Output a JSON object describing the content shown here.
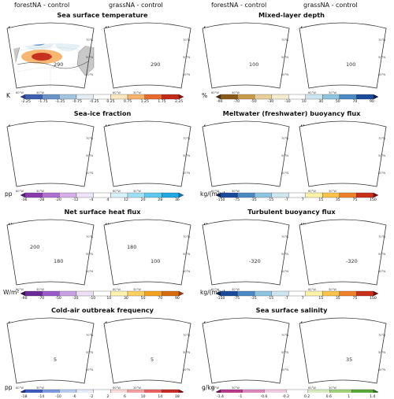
{
  "column_headers": [
    "forestNA - control",
    "grassNA - control",
    "forestNA - control",
    "grassNA - control"
  ],
  "rows": [
    {
      "left": {
        "title": "Sea surface temperature",
        "panels": [
          {
            "label": "(a)",
            "contours": [
              "290"
            ]
          },
          {
            "label": "(b)",
            "contours": [
              "290"
            ]
          }
        ],
        "unit": "K",
        "ticks": [
          "-2.25",
          "-1.75",
          "-1.25",
          "-0.75",
          "-0.25",
          "0.25",
          "0.75",
          "1.25",
          "1.75",
          "2.25"
        ],
        "colors": [
          "#2c3a8f",
          "#3d60b0",
          "#6a94c8",
          "#a3c5e0",
          "#e4eef6",
          "#ffffff",
          "#fde7c0",
          "#f7b36a",
          "#e8692d",
          "#c42a1a",
          "#8c1010"
        ]
      },
      "right": {
        "title": "Mixed-layer depth",
        "panels": [
          {
            "label": "(c)",
            "contours": [
              "100"
            ]
          },
          {
            "label": "(d)",
            "contours": [
              "100"
            ]
          }
        ],
        "unit": "%",
        "ticks": [
          "-90",
          "-70",
          "-50",
          "-30",
          "-10",
          "10",
          "30",
          "50",
          "70",
          "90"
        ],
        "colors": [
          "#4a2a0a",
          "#8a5a1a",
          "#c89a4a",
          "#e8d09a",
          "#f6ecd0",
          "#ffffff",
          "#cfe6f0",
          "#8ec4e0",
          "#4a8ac4",
          "#1a4a9a",
          "#081a5a"
        ]
      }
    },
    {
      "left": {
        "title": "Sea-ice fraction",
        "panels": [
          {
            "label": "(e)",
            "contours": []
          },
          {
            "label": "(f)",
            "contours": []
          }
        ],
        "unit": "pp",
        "ticks": [
          "-36",
          "-28",
          "-20",
          "-12",
          "-4",
          "4",
          "12",
          "20",
          "28",
          "36"
        ],
        "colors": [
          "#5a1a7a",
          "#8a3ab0",
          "#b070d0",
          "#d6b0ea",
          "#f0e4f8",
          "#ffffff",
          "#d8f2fa",
          "#9ee0f4",
          "#5cc8ec",
          "#20a8e0",
          "#0a7ac0"
        ]
      },
      "right": {
        "title": "Meltwater (freshwater) buoyancy flux",
        "panels": [
          {
            "label": "(g)",
            "contours": []
          },
          {
            "label": "(h)",
            "contours": []
          }
        ],
        "unit": "kg/(m²y)",
        "ticks": [
          "-150",
          "-75",
          "-35",
          "-15",
          "-7",
          "7",
          "15",
          "35",
          "75",
          "150"
        ],
        "colors": [
          "#08205a",
          "#1a4a9a",
          "#4a8ac4",
          "#8ec4e0",
          "#cfe6f0",
          "#ffffff",
          "#fff2a8",
          "#fcc44a",
          "#f0802a",
          "#c8301a",
          "#800a0a"
        ]
      }
    },
    {
      "left": {
        "title": "Net surface heat flux",
        "panels": [
          {
            "label": "(i)",
            "contours": [
              "180",
              "200"
            ]
          },
          {
            "label": "(j)",
            "contours": [
              "100",
              "180"
            ]
          }
        ],
        "unit": "W/m²",
        "ticks": [
          "-90",
          "-70",
          "-50",
          "-30",
          "-10",
          "10",
          "30",
          "50",
          "70",
          "90"
        ],
        "colors": [
          "#3a0a5a",
          "#6a2a9a",
          "#9a5ac8",
          "#c8a0e4",
          "#ece0f6",
          "#ffffff",
          "#fff2b0",
          "#fcd060",
          "#f4a020",
          "#d86a10",
          "#a03a08"
        ]
      },
      "right": {
        "title": "Turbulent buoyancy flux",
        "panels": [
          {
            "label": "(k)",
            "contours": [
              "-320"
            ]
          },
          {
            "label": "(l)",
            "contours": [
              "-320"
            ]
          }
        ],
        "unit": "kg/(m²y)",
        "ticks": [
          "-150",
          "-75",
          "-35",
          "-15",
          "-7",
          "7",
          "15",
          "35",
          "75",
          "150"
        ],
        "colors": [
          "#08205a",
          "#1a4a9a",
          "#4a8ac4",
          "#8ec4e0",
          "#cfe6f0",
          "#ffffff",
          "#fff2a8",
          "#fcc44a",
          "#f0802a",
          "#c8301a",
          "#800a0a"
        ]
      }
    },
    {
      "left": {
        "title": "Cold-air outbreak frequency",
        "panels": [
          {
            "label": "(m)",
            "contours": [
              "5"
            ]
          },
          {
            "label": "(n)",
            "contours": [
              "5"
            ]
          }
        ],
        "unit": "pp",
        "ticks": [
          "-18",
          "-14",
          "-10",
          "-6",
          "-2",
          "2",
          "6",
          "10",
          "14",
          "18"
        ],
        "colors": [
          "#1a2a8a",
          "#3a5ac0",
          "#7a9ae0",
          "#b8caf0",
          "#e6ecfa",
          "#ffffff",
          "#fbdada",
          "#f4a0a0",
          "#e86060",
          "#c82a2a",
          "#8a0a0a"
        ]
      },
      "right": {
        "title": "Sea surface salinity",
        "panels": [
          {
            "label": "(o)",
            "contours": []
          },
          {
            "label": "(p)",
            "contours": [
              "35"
            ]
          }
        ],
        "unit": "g/kg",
        "ticks": [
          "-1.4",
          "-1",
          "-0.6",
          "-0.2",
          "0.2",
          "0.6",
          "1",
          "1.4"
        ],
        "colors": [
          "#7a0a5a",
          "#b83a8a",
          "#dc88bc",
          "#f2cce2",
          "#ffffff",
          "#d8ecc0",
          "#a0d07a",
          "#5aa83a",
          "#2a7a1a"
        ]
      }
    }
  ],
  "map_labels": {
    "lon1": "60°W",
    "lon2": "30°W",
    "lat1": "70°N",
    "lat2": "50°N",
    "lat3": "40°N"
  }
}
